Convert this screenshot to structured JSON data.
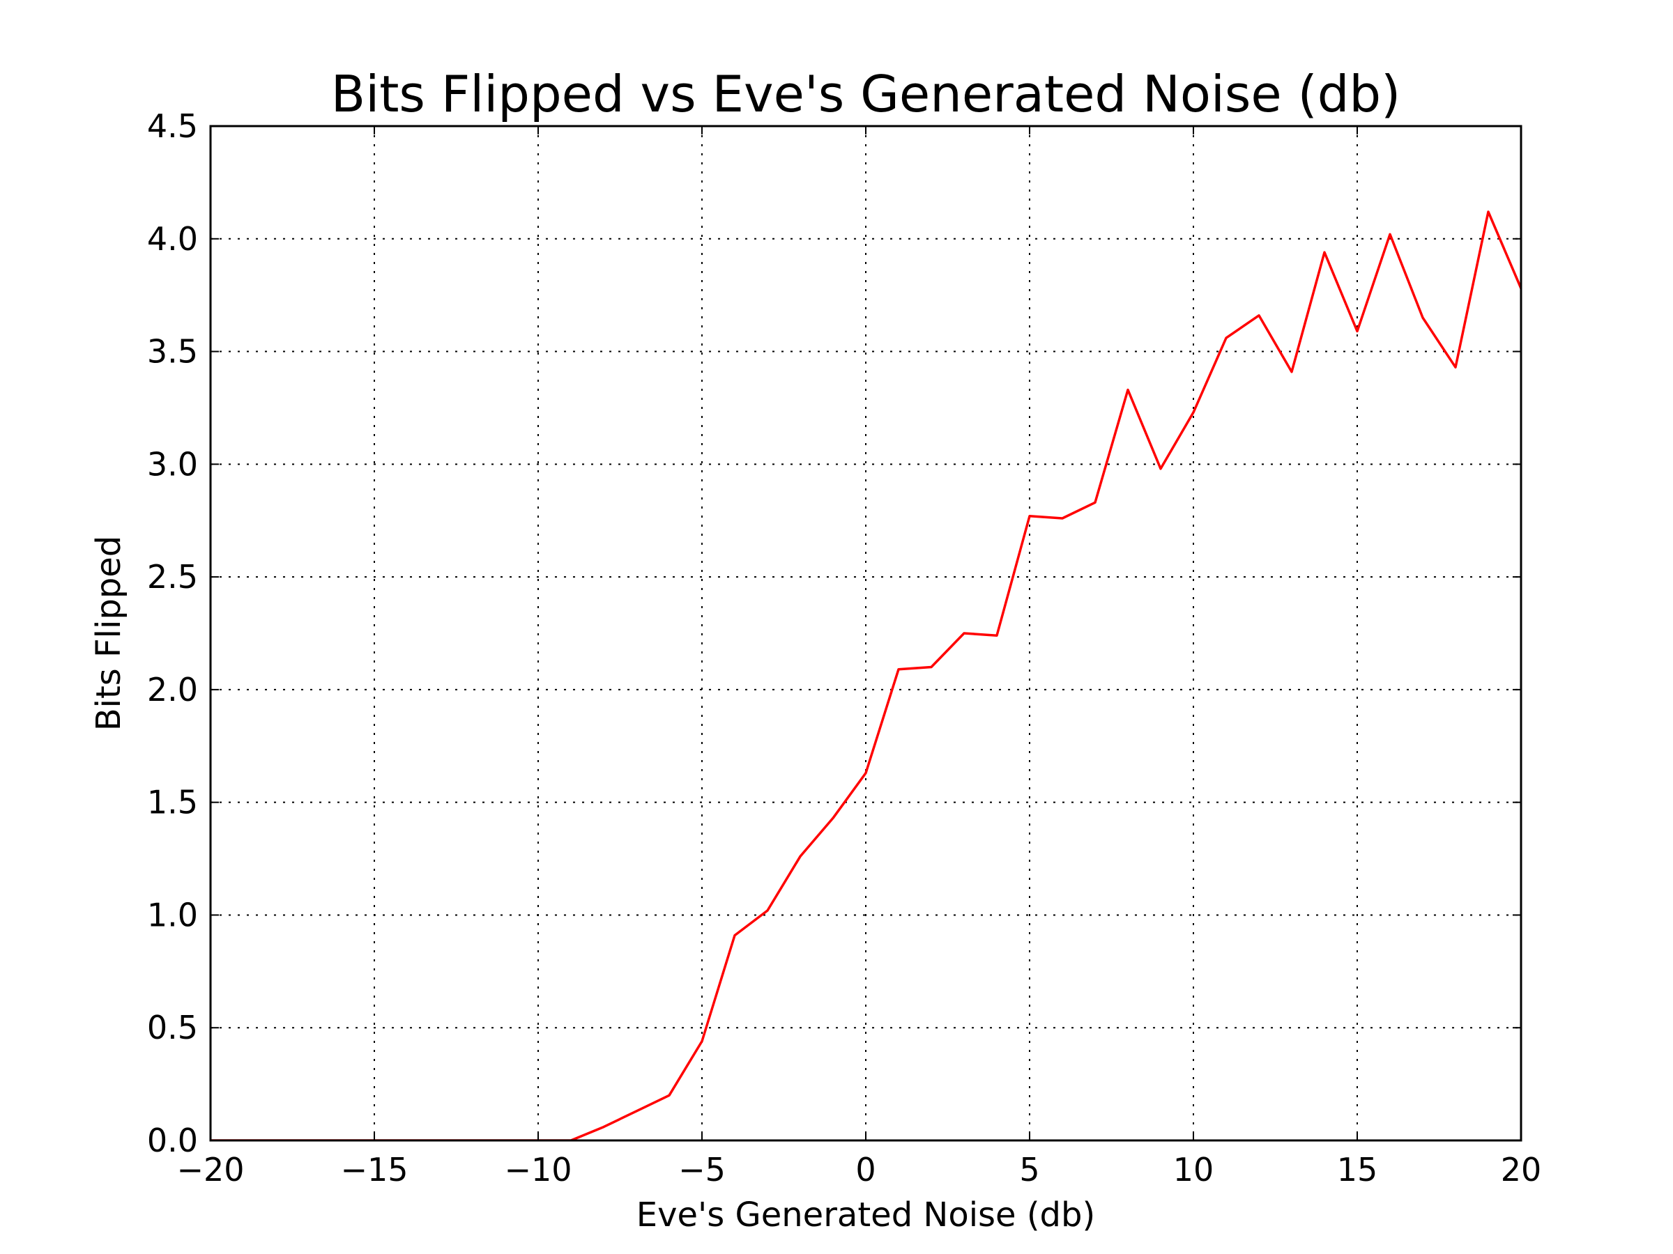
{
  "chart_data": {
    "type": "line",
    "title": "Bits Flipped vs Eve's Generated Noise (db)",
    "xlabel": "Eve's Generated Noise (db)",
    "ylabel": "Bits Flipped",
    "xlim": [
      -20,
      20
    ],
    "ylim": [
      0.0,
      4.5
    ],
    "xticks": [
      -20,
      -15,
      -10,
      -5,
      0,
      5,
      10,
      15,
      20
    ],
    "xtick_labels": [
      "−20",
      "−15",
      "−10",
      "−5",
      "0",
      "5",
      "10",
      "15",
      "20"
    ],
    "yticks": [
      0.0,
      0.5,
      1.0,
      1.5,
      2.0,
      2.5,
      3.0,
      3.5,
      4.0,
      4.5
    ],
    "ytick_labels": [
      "0.0",
      "0.5",
      "1.0",
      "1.5",
      "2.0",
      "2.5",
      "3.0",
      "3.5",
      "4.0",
      "4.5"
    ],
    "grid": true,
    "series": [
      {
        "color": "#ff0000",
        "x": [
          -20,
          -19,
          -18,
          -17,
          -16,
          -15,
          -14,
          -13,
          -12,
          -11,
          -10,
          -9,
          -8,
          -7,
          -6,
          -5,
          -4,
          -3,
          -2,
          -1,
          0,
          1,
          2,
          3,
          4,
          5,
          6,
          7,
          8,
          9,
          10,
          11,
          12,
          13,
          14,
          15,
          16,
          17,
          18,
          19,
          20
        ],
        "y": [
          0,
          0,
          0,
          0,
          0,
          0,
          0,
          0,
          0,
          0,
          0,
          0,
          0.06,
          0.13,
          0.2,
          0.44,
          0.91,
          1.02,
          1.26,
          1.43,
          1.63,
          2.09,
          2.1,
          2.25,
          2.24,
          2.77,
          2.76,
          2.83,
          3.33,
          2.98,
          3.23,
          3.56,
          3.66,
          3.41,
          3.94,
          3.59,
          4.02,
          3.65,
          3.43,
          4.12,
          3.78
        ]
      }
    ]
  }
}
